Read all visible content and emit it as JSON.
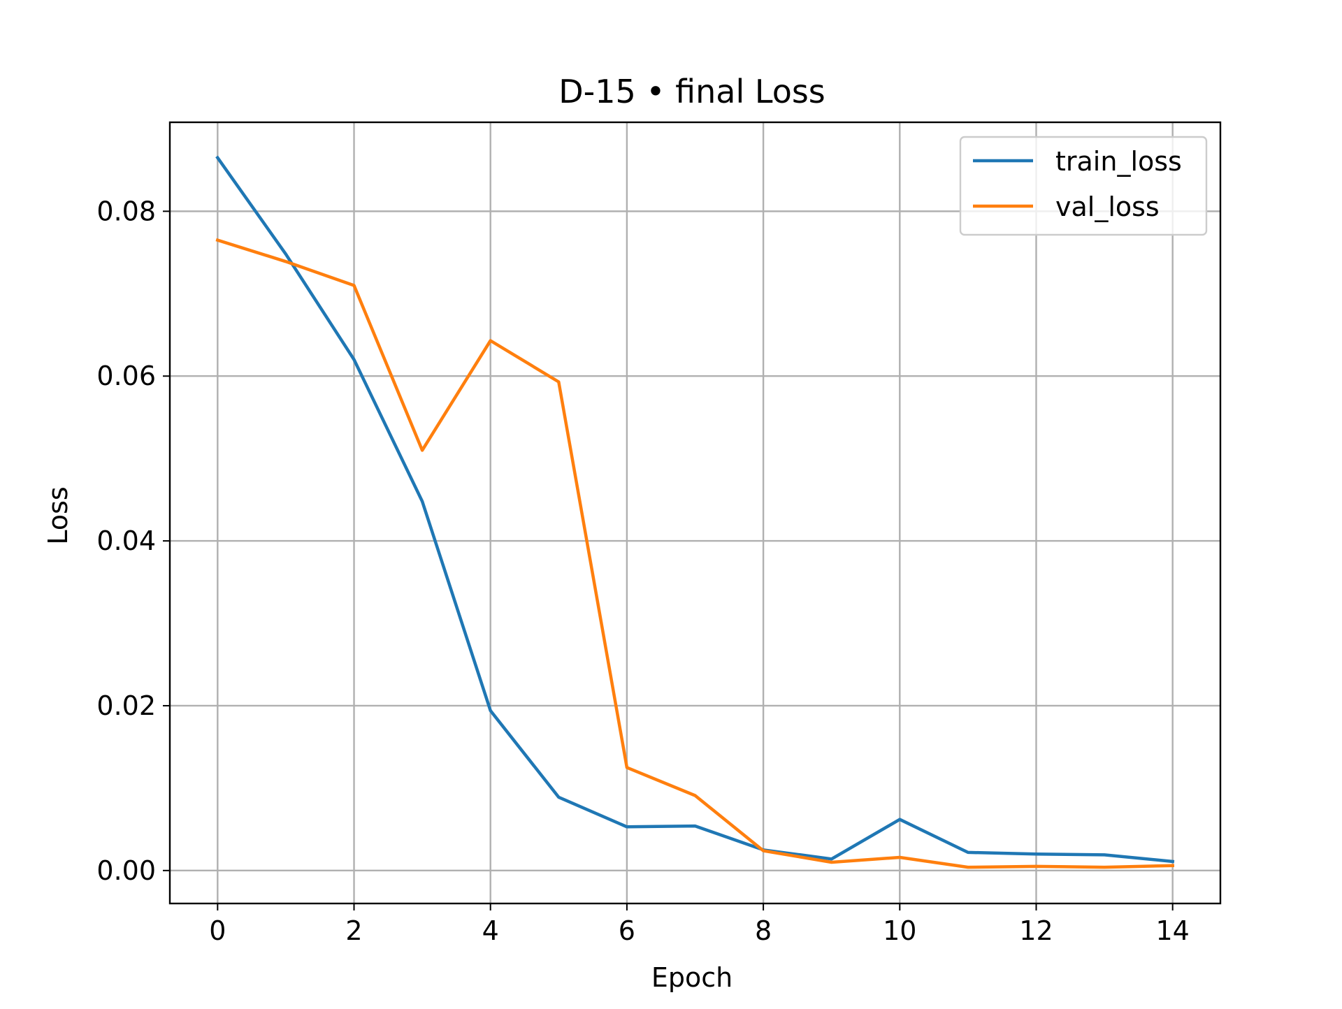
{
  "chart_data": {
    "type": "line",
    "title": "D-15 • final Loss",
    "xlabel": "Epoch",
    "ylabel": "Loss",
    "x": [
      0,
      1,
      2,
      3,
      4,
      5,
      6,
      7,
      8,
      9,
      10,
      11,
      12,
      13,
      14
    ],
    "xlim": [
      -0.7,
      14.7
    ],
    "ylim": [
      -0.004,
      0.0908
    ],
    "xticks": [
      0,
      2,
      4,
      6,
      8,
      10,
      12,
      14
    ],
    "xtick_labels": [
      "0",
      "2",
      "4",
      "6",
      "8",
      "10",
      "12",
      "14"
    ],
    "yticks": [
      0.0,
      0.02,
      0.04,
      0.06,
      0.08
    ],
    "ytick_labels": [
      "0.00",
      "0.02",
      "0.04",
      "0.06",
      "0.08"
    ],
    "grid": true,
    "legend_position": "top-right",
    "series": [
      {
        "name": "train_loss",
        "color": "#1f77b4",
        "values": [
          0.0865,
          0.0748,
          0.062,
          0.0448,
          0.0194,
          0.0089,
          0.0053,
          0.0054,
          0.0025,
          0.0014,
          0.0062,
          0.0022,
          0.002,
          0.0019,
          0.0011
        ]
      },
      {
        "name": "val_loss",
        "color": "#ff7f0e",
        "values": [
          0.0765,
          0.0739,
          0.071,
          0.051,
          0.0643,
          0.0593,
          0.0125,
          0.0091,
          0.0024,
          0.001,
          0.0016,
          0.0004,
          0.0005,
          0.0004,
          0.0006
        ]
      }
    ]
  }
}
